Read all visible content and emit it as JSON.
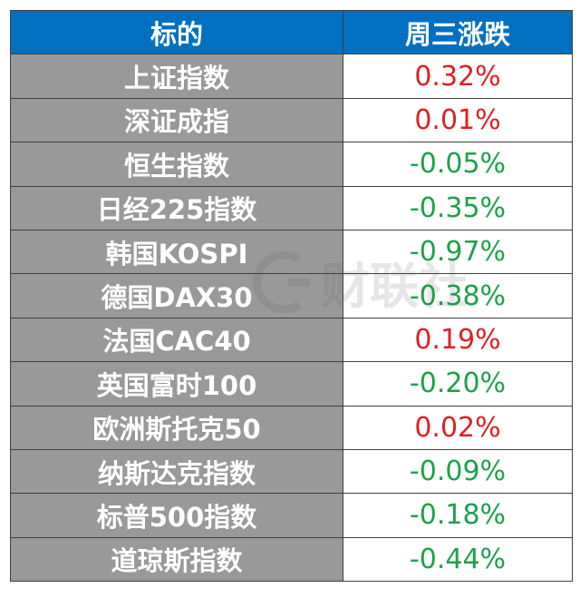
{
  "header": {
    "col_name": "标的",
    "col_change": "周三涨跌"
  },
  "colors": {
    "header_bg": "#0170c0",
    "name_cell_bg": "#999999",
    "up": "#e02020",
    "down": "#1ea14a"
  },
  "watermark": {
    "text": "财联社",
    "icon": "cls-logo-icon"
  },
  "rows": [
    {
      "name": "上证指数",
      "change": "0.32%",
      "direction": "up"
    },
    {
      "name": "深证成指",
      "change": "0.01%",
      "direction": "up"
    },
    {
      "name": "恒生指数",
      "change": "-0.05%",
      "direction": "down"
    },
    {
      "name": "日经225指数",
      "change": "-0.35%",
      "direction": "down"
    },
    {
      "name": "韩国KOSPI",
      "change": "-0.97%",
      "direction": "down"
    },
    {
      "name": "德国DAX30",
      "change": "-0.38%",
      "direction": "down"
    },
    {
      "name": "法国CAC40",
      "change": "0.19%",
      "direction": "up"
    },
    {
      "name": "英国富时100",
      "change": "-0.20%",
      "direction": "down"
    },
    {
      "name": "欧洲斯托克50",
      "change": "0.02%",
      "direction": "up"
    },
    {
      "name": "纳斯达克指数",
      "change": "-0.09%",
      "direction": "down"
    },
    {
      "name": "标普500指数",
      "change": "-0.18%",
      "direction": "down"
    },
    {
      "name": "道琼斯指数",
      "change": "-0.44%",
      "direction": "down"
    }
  ]
}
